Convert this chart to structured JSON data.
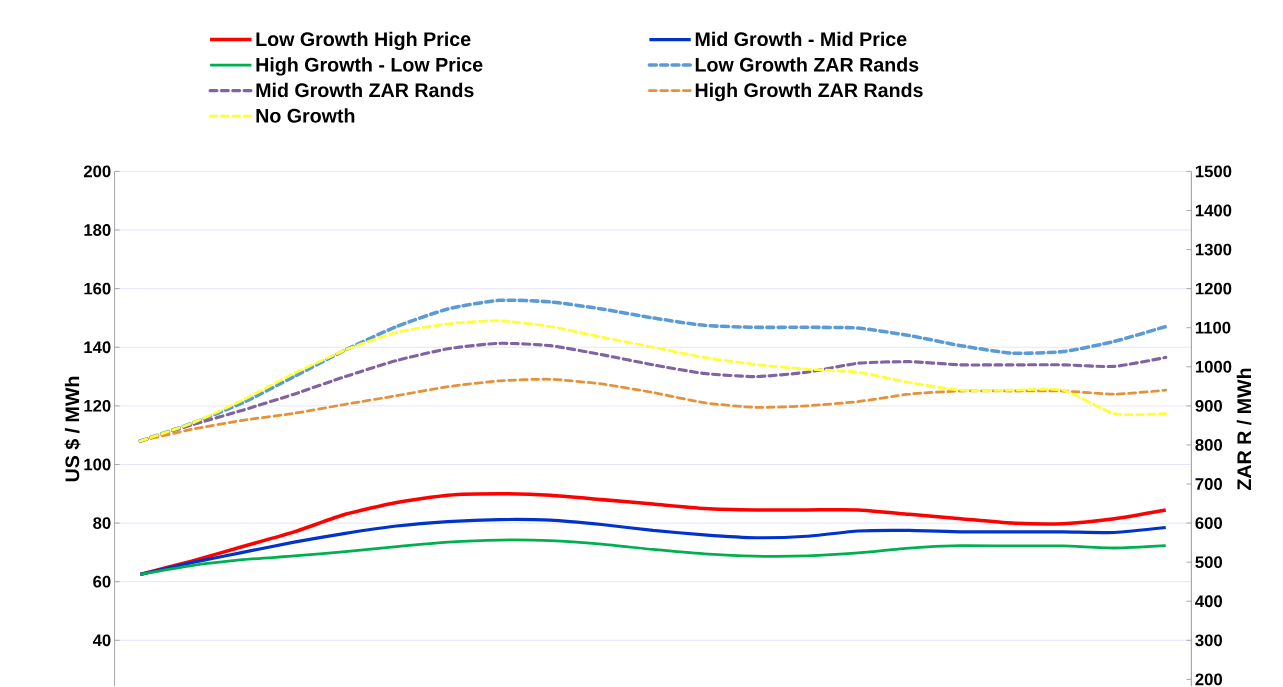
{
  "chart_data": {
    "type": "line",
    "ylabel": "US $ / MWh",
    "y2label": "ZAR R / MWh",
    "categories": [
      null,
      null,
      null,
      null,
      null,
      null,
      null,
      null,
      null,
      null,
      null,
      null,
      null,
      null,
      null,
      null,
      null,
      null,
      null,
      null,
      null
    ],
    "ylim": [
      24.2,
      200
    ],
    "yticks": [
      40,
      60,
      80,
      100,
      120,
      140,
      160,
      180,
      200
    ],
    "y2lim": [
      181.5,
      1500
    ],
    "y2ticks": [
      200,
      300,
      400,
      500,
      600,
      700,
      800,
      900,
      1000,
      1100,
      1200,
      1300,
      1400,
      1500
    ],
    "grid": "y",
    "legend": "top",
    "marker": "none",
    "series": [
      {
        "name": "Low Growth High Price",
        "color": "#ff0000",
        "line_style": "solid",
        "values": [
          62.5,
          67,
          72,
          77,
          83,
          87,
          89.5,
          90,
          89.5,
          88,
          86.5,
          85,
          84.5,
          84.5,
          84.5,
          83,
          81.5,
          80,
          79.8,
          81.5,
          84.5
        ]
      },
      {
        "name": "Mid Growth - Mid Price",
        "color": "#0033cc",
        "line_style": "solid",
        "values": [
          62.5,
          66.5,
          70,
          73.5,
          76.5,
          79,
          80.5,
          81.2,
          81,
          79.5,
          77.5,
          76,
          75,
          75.5,
          77.3,
          77.5,
          77,
          77,
          77,
          76.8,
          78.5
        ]
      },
      {
        "name": "High Growth - Low Price",
        "color": "#00b050",
        "line_style": "solid",
        "values": [
          62.5,
          65.5,
          67.5,
          68.8,
          70.3,
          72,
          73.5,
          74.2,
          74,
          72.8,
          71,
          69.5,
          68.7,
          68.8,
          69.8,
          71.5,
          72.3,
          72.2,
          72.2,
          71.5,
          72.3
        ]
      },
      {
        "name": "Low Growth ZAR Rands",
        "color": "#5b9bd5",
        "line_style": "dashed",
        "axis": "y2",
        "values": [
          810,
          855,
          908,
          975,
          1043,
          1103,
          1148,
          1170,
          1166,
          1148,
          1125,
          1106,
          1101,
          1101,
          1099,
          1080,
          1054,
          1035,
          1039,
          1065,
          1103
        ]
      },
      {
        "name": "Mid Growth ZAR Rands",
        "color": "#8064a2",
        "line_style": "dashed",
        "axis": "y2",
        "values": [
          810,
          851,
          889,
          930,
          975,
          1016,
          1046,
          1060,
          1054,
          1031,
          1005,
          983,
          975,
          986,
          1009,
          1013,
          1005,
          1005,
          1005,
          1001,
          1024
        ]
      },
      {
        "name": "High Growth ZAR Rands",
        "color": "#e69138",
        "line_style": "dashed",
        "axis": "y2",
        "values": [
          810,
          840,
          863,
          881,
          904,
          926,
          949,
          964,
          968,
          956,
          934,
          908,
          896,
          900,
          911,
          930,
          938,
          938,
          938,
          930,
          940
        ]
      },
      {
        "name": "No Growth",
        "color": "#ffff33",
        "line_style": "dashed",
        "axis": "y2",
        "values": [
          810,
          855,
          915,
          983,
          1043,
          1088,
          1110,
          1118,
          1103,
          1076,
          1050,
          1024,
          1006,
          994,
          986,
          960,
          940,
          940,
          940,
          880,
          880
        ]
      }
    ]
  }
}
